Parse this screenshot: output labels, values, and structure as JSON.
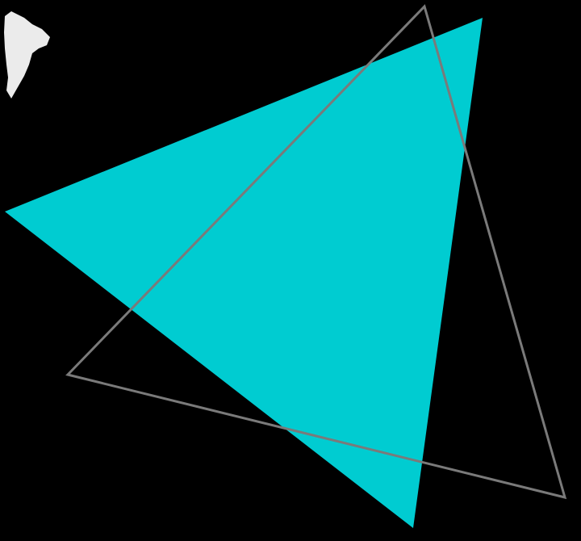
{
  "background_color": "#000000",
  "shapes": {
    "filled_triangle": {
      "fill_color": "#00CCD1"
    },
    "outline_triangle": {
      "stroke_color": "#7A7A7A"
    },
    "white_smudge": {
      "fill_color": "#FFFFFF"
    }
  }
}
